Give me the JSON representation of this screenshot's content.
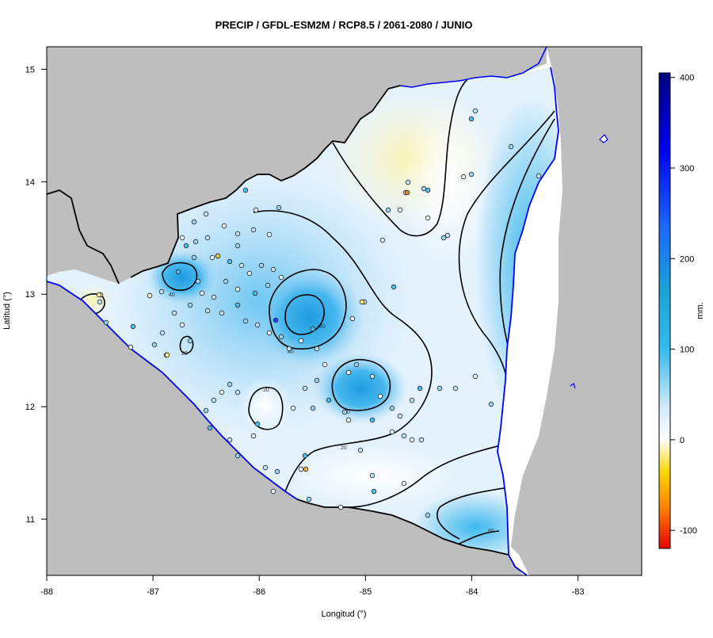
{
  "title": "PRECIP / GFDL-ESM2M / RCP8.5 / 2061-2080 / JUNIO",
  "axes": {
    "xlabel": "Longitud (°)",
    "ylabel": "Latitud (°)",
    "xlim": [
      -88,
      -82.4
    ],
    "ylim": [
      10.5,
      15.2
    ],
    "xticks": [
      "-88",
      "-87",
      "-86",
      "-85",
      "-84",
      "-83"
    ],
    "yticks": [
      "15",
      "14",
      "13",
      "12",
      "11"
    ]
  },
  "colorbar": {
    "unit": "mm.",
    "range": [
      -120,
      405
    ],
    "ticks": [
      "400",
      "300",
      "200",
      "100",
      "0",
      "-100"
    ],
    "tick_values": [
      400,
      300,
      200,
      100,
      0,
      -100
    ],
    "colors": {
      "min": "#e60000",
      "neg_mid": "#ffd700",
      "zero": "#ffffff",
      "pos_low": "#33bbee",
      "pos_mid": "#1a66ff",
      "max": "#000080"
    }
  },
  "contour_labels": [
    "20",
    "20",
    "20",
    "40",
    "40",
    "40",
    "40",
    "60"
  ],
  "colors": {
    "land_outside": "#bebebe",
    "sea": "#ffffff",
    "coastline": "#0000ff",
    "border": "#000000",
    "contour": "#000000"
  }
}
